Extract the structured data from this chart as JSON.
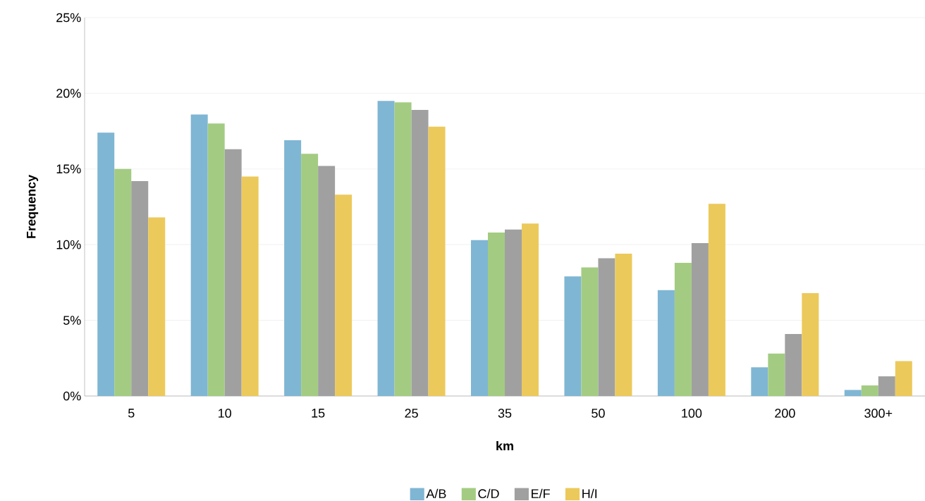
{
  "chart_data": {
    "type": "bar",
    "xlabel": "km",
    "ylabel": "Frequency",
    "categories": [
      "5",
      "10",
      "15",
      "25",
      "35",
      "50",
      "100",
      "200",
      "300+"
    ],
    "series": [
      {
        "name": "A/B",
        "color": "#7fb6d3",
        "values": [
          17.4,
          18.6,
          16.9,
          19.5,
          10.3,
          7.9,
          7.0,
          1.9,
          0.4
        ]
      },
      {
        "name": "C/D",
        "color": "#a3cc82",
        "values": [
          15.0,
          18.0,
          16.0,
          19.4,
          10.8,
          8.5,
          8.8,
          2.8,
          0.7
        ]
      },
      {
        "name": "E/F",
        "color": "#a0a0a0",
        "values": [
          14.2,
          16.3,
          15.2,
          18.9,
          11.0,
          9.1,
          10.1,
          4.1,
          1.3
        ]
      },
      {
        "name": "H/I",
        "color": "#ecc95b",
        "values": [
          11.8,
          14.5,
          13.3,
          17.8,
          11.4,
          9.4,
          12.7,
          6.8,
          2.3
        ]
      }
    ],
    "ylim": [
      0,
      25
    ],
    "yticks": [
      {
        "value": 0,
        "label": "0%"
      },
      {
        "value": 5,
        "label": "5%"
      },
      {
        "value": 10,
        "label": "10%"
      },
      {
        "value": 15,
        "label": "15%"
      },
      {
        "value": 20,
        "label": "20%"
      },
      {
        "value": 25,
        "label": "25%"
      }
    ],
    "grid": "y",
    "legend": "bottom"
  }
}
